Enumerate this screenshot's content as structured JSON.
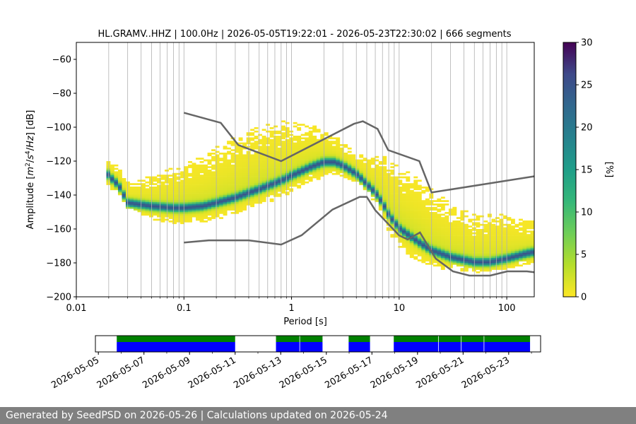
{
  "footer": {
    "text": "Generated by SeedPSD on 2026-05-26 | Calculations updated on 2026-05-24"
  },
  "chart_data": [
    {
      "type": "heatmap",
      "title": "HL.GRAMV..HHZ | 100.0Hz | 2026-05-05T19:22:01 - 2026-05-23T22:30:02 | 666 segments",
      "xlabel": "Period [s]",
      "ylabel_parts": [
        "Amplitude [",
        "m",
        "2",
        "/",
        "s",
        "4",
        "/",
        "Hz",
        "] [dB]"
      ],
      "xscale": "log",
      "xlim": [
        0.01,
        180
      ],
      "ylim": [
        -200,
        -50
      ],
      "xticks": [
        0.01,
        0.1,
        1,
        10,
        100
      ],
      "xtick_labels": [
        "0.01",
        "0.1",
        "1",
        "10",
        "100"
      ],
      "yticks": [
        -200,
        -180,
        -160,
        -140,
        -120,
        -100,
        -80,
        -60
      ],
      "ytick_labels": [
        "−200",
        "−180",
        "−160",
        "−140",
        "−120",
        "−100",
        "−80",
        "−60"
      ],
      "grid": "vertical",
      "colorbar": {
        "label": "[%]",
        "range": [
          0,
          30
        ],
        "ticks": [
          0,
          5,
          10,
          15,
          20,
          25,
          30
        ],
        "colormap": "viridis_r"
      },
      "psd_mode": {
        "period": [
          0.019,
          0.02,
          0.025,
          0.03,
          0.05,
          0.08,
          0.1,
          0.15,
          0.2,
          0.3,
          0.5,
          0.8,
          1.0,
          1.5,
          2.0,
          2.5,
          3.0,
          4.0,
          4.5,
          5.0,
          6.0,
          7.0,
          8.0,
          10.0,
          15.0,
          20.0,
          30.0,
          50.0,
          70.0,
          100.0,
          150.0,
          180.0
        ],
        "db": [
          -126,
          -129,
          -135,
          -145,
          -147,
          -148,
          -148,
          -147,
          -145,
          -142,
          -137,
          -132,
          -129,
          -124,
          -121,
          -121,
          -123,
          -128,
          -131,
          -134,
          -139,
          -145,
          -152,
          -160,
          -168,
          -173,
          -177,
          -180,
          -180,
          -178,
          -175,
          -174
        ],
        "spread_low_db": [
          6,
          7,
          5,
          4,
          8,
          9,
          10,
          10,
          10,
          10,
          10,
          10,
          10,
          9,
          9,
          8,
          7,
          5,
          4,
          5,
          6,
          8,
          10,
          12,
          12,
          10,
          8,
          6,
          6,
          6,
          7,
          7
        ],
        "spread_high_db": [
          8,
          9,
          11,
          13,
          18,
          24,
          27,
          30,
          33,
          36,
          37,
          36,
          32,
          26,
          20,
          16,
          14,
          12,
          14,
          16,
          22,
          28,
          32,
          36,
          38,
          36,
          32,
          28,
          28,
          26,
          20,
          20
        ]
      },
      "noise_models": [
        {
          "name": "high",
          "period": [
            0.1,
            0.22,
            0.32,
            0.8,
            3.8,
            4.6,
            6.3,
            7.9,
            15.4,
            20.0,
            354.8
          ],
          "db": [
            -91.5,
            -97.4,
            -110.5,
            -120.0,
            -98.0,
            -96.5,
            -101.0,
            -113.5,
            -120.0,
            -138.5,
            -126.0
          ]
        },
        {
          "name": "low",
          "period": [
            0.1,
            0.17,
            0.4,
            0.8,
            1.24,
            2.4,
            4.3,
            5.0,
            6.0,
            10.0,
            12.0,
            15.6,
            21.9,
            31.6,
            45.0,
            70.0,
            101.0,
            154.0,
            328.0
          ],
          "db": [
            -168.0,
            -166.7,
            -166.7,
            -169.2,
            -163.7,
            -148.6,
            -141.1,
            -141.1,
            -149.0,
            -163.8,
            -166.2,
            -162.1,
            -177.5,
            -185.0,
            -187.5,
            -187.5,
            -185.0,
            -185.0,
            -187.5
          ]
        }
      ]
    },
    {
      "type": "timeline",
      "x_start": "2026-05-05",
      "x_end": "2026-05-24",
      "xtick_labels": [
        "2026-05-05",
        "2026-05-07",
        "2026-05-09",
        "2026-05-11",
        "2026-05-13",
        "2026-05-15",
        "2026-05-17",
        "2026-05-19",
        "2026-05-21",
        "2026-05-23"
      ],
      "coverage_segments": [
        [
          "2026-05-05T19:22",
          "2026-05-11T00:00"
        ],
        [
          "2026-05-12T19:00",
          "2026-05-14T20:00"
        ],
        [
          "2026-05-15T23:30",
          "2026-05-16T22:00"
        ],
        [
          "2026-05-17T23:00",
          "2026-05-23T22:30"
        ]
      ],
      "segment_breaks": [
        "2026-05-13T20:00",
        "2026-05-19T22:00",
        "2026-05-20T22:00",
        "2026-05-21T22:00"
      ],
      "colors": {
        "data": "#0000ff",
        "used": "#008000"
      }
    }
  ]
}
